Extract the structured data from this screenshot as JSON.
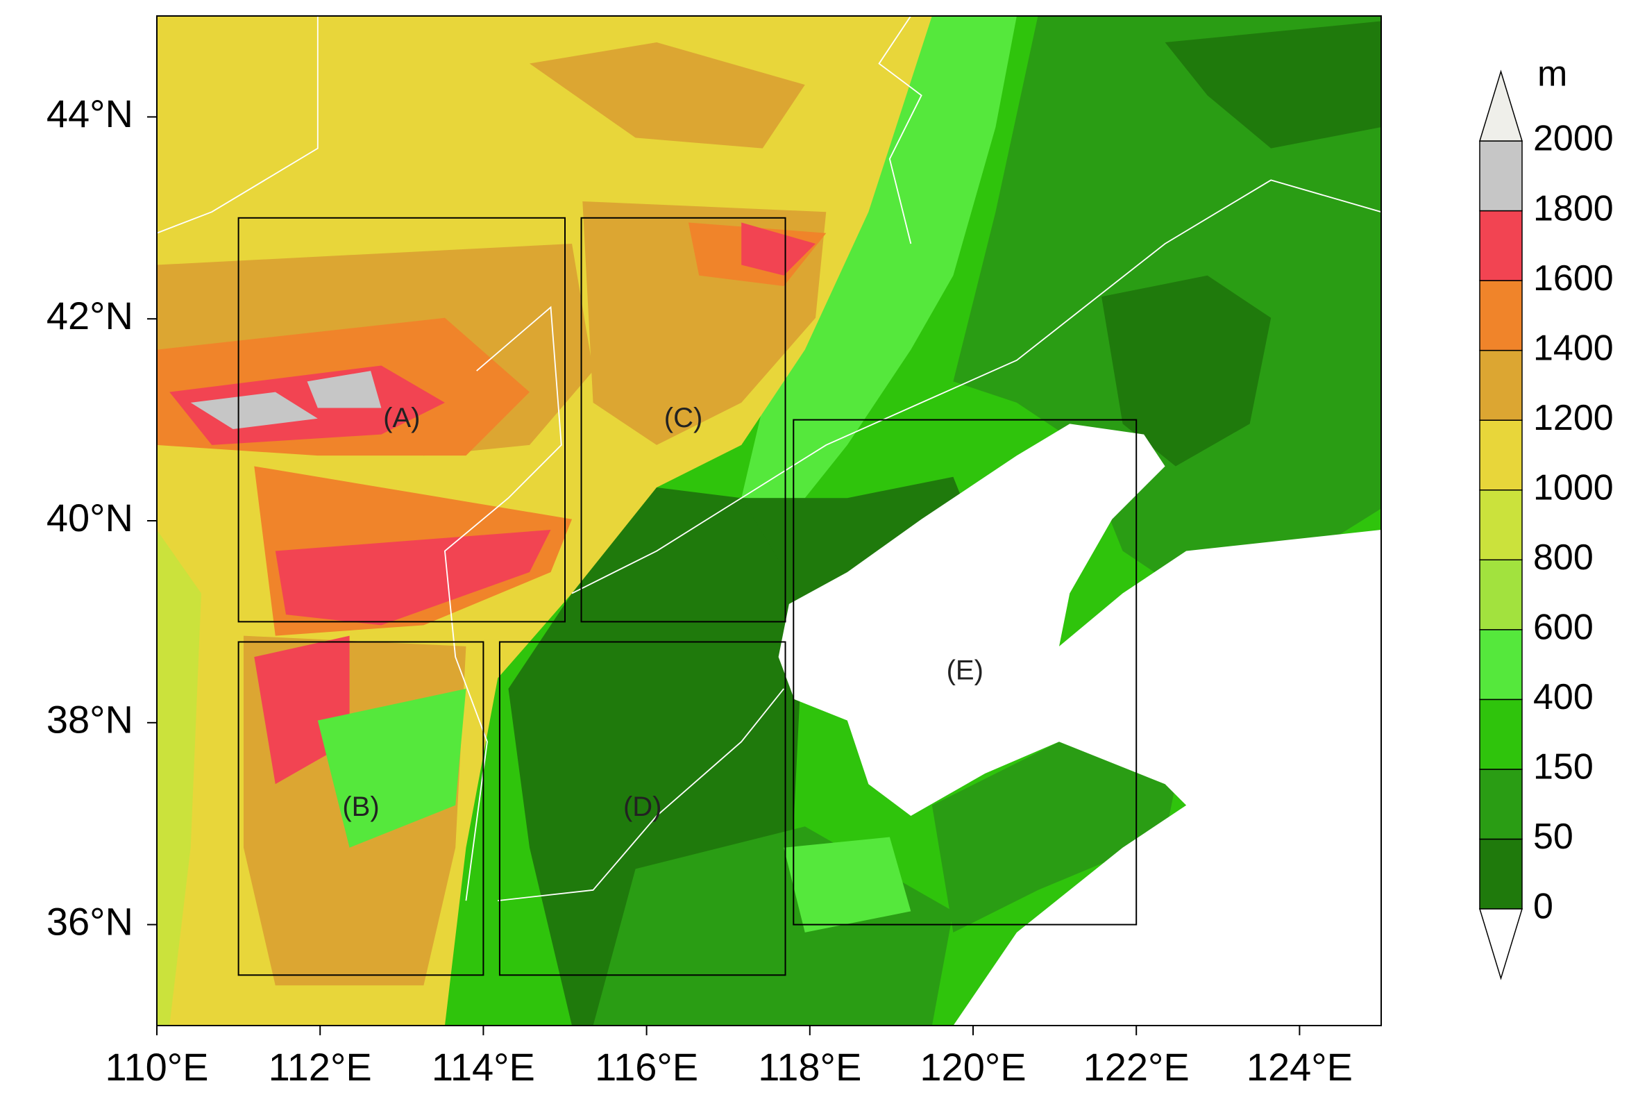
{
  "map": {
    "xlim": [
      110,
      125
    ],
    "ylim": [
      35,
      45
    ],
    "xticks": [
      {
        "value": 110,
        "label": "110°E"
      },
      {
        "value": 112,
        "label": "112°E"
      },
      {
        "value": 114,
        "label": "114°E"
      },
      {
        "value": 116,
        "label": "116°E"
      },
      {
        "value": 118,
        "label": "118°E"
      },
      {
        "value": 120,
        "label": "120°E"
      },
      {
        "value": 122,
        "label": "122°E"
      },
      {
        "value": 124,
        "label": "124°E"
      }
    ],
    "yticks": [
      {
        "value": 36,
        "label": "36°N"
      },
      {
        "value": 38,
        "label": "38°N"
      },
      {
        "value": 40,
        "label": "40°N"
      },
      {
        "value": 42,
        "label": "42°N"
      },
      {
        "value": 44,
        "label": "44°N"
      }
    ],
    "boxes": [
      {
        "label": "(A)",
        "lon": [
          111,
          115
        ],
        "lat": [
          39,
          43
        ]
      },
      {
        "label": "(B)",
        "lon": [
          111,
          114
        ],
        "lat": [
          35.5,
          38.8
        ]
      },
      {
        "label": "(C)",
        "lon": [
          115.2,
          117.7
        ],
        "lat": [
          39,
          43
        ]
      },
      {
        "label": "(D)",
        "lon": [
          114.2,
          117.7
        ],
        "lat": [
          35.5,
          38.8
        ]
      },
      {
        "label": "(E)",
        "lon": [
          117.8,
          122
        ],
        "lat": [
          36,
          41
        ]
      }
    ],
    "colorbar": {
      "unit": "m",
      "levels": [
        0,
        50,
        150,
        400,
        600,
        800,
        1000,
        1200,
        1400,
        1600,
        1800,
        2000
      ],
      "colors": [
        "#1f7a0c",
        "#2a9d14",
        "#2fc40c",
        "#55e83c",
        "#a2e23e",
        "#cbe23c",
        "#e8d63a",
        "#dca632",
        "#f0842a",
        "#f24452",
        "#c6c6c6"
      ],
      "over_color": "#efefea",
      "under_color": "#ffffff"
    }
  }
}
